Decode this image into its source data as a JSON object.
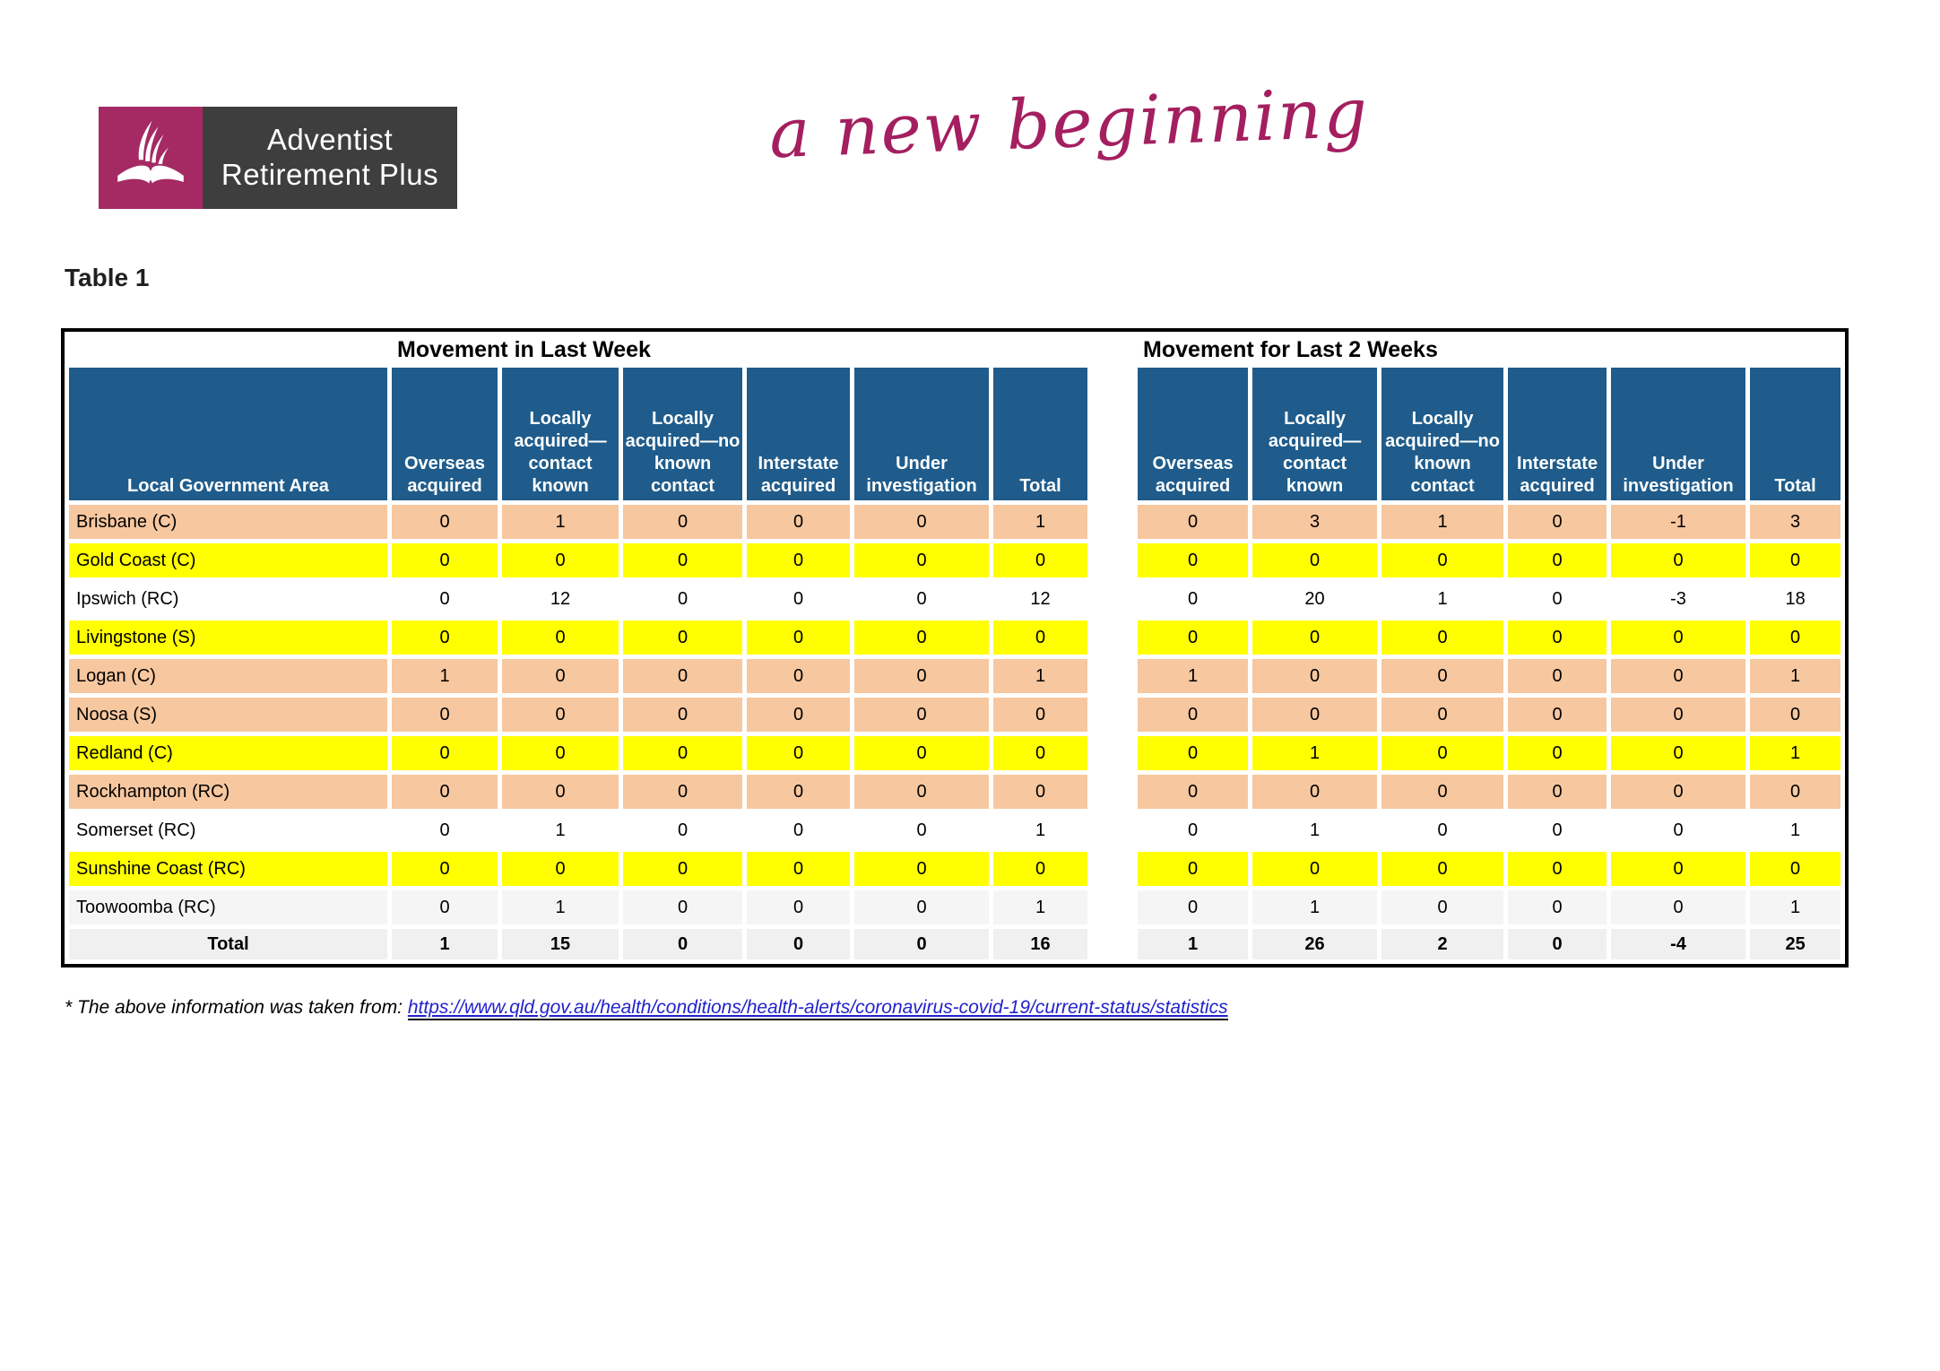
{
  "logo": {
    "line1": "Adventist",
    "line2": "Retirement Plus"
  },
  "tagline": "a new beginning",
  "table": {
    "caption": "Table 1",
    "group1_title": "Movement in Last Week",
    "group2_title": "Movement for Last 2 Weeks",
    "lga_header": "Local Government Area",
    "col_headers": [
      "Overseas acquired",
      "Locally acquired—contact known",
      "Locally acquired—no known contact",
      "Interstate acquired",
      "Under investigation",
      "Total"
    ],
    "rows": [
      {
        "area": "Brisbane (C)",
        "highlight": "peach",
        "week1": [
          0,
          1,
          0,
          0,
          0,
          1
        ],
        "week2": [
          0,
          3,
          1,
          0,
          -1,
          3
        ]
      },
      {
        "area": "Gold Coast (C)",
        "highlight": "yellow",
        "week1": [
          0,
          0,
          0,
          0,
          0,
          0
        ],
        "week2": [
          0,
          0,
          0,
          0,
          0,
          0
        ]
      },
      {
        "area": "Ipswich (RC)",
        "highlight": "white",
        "week1": [
          0,
          12,
          0,
          0,
          0,
          12
        ],
        "week2": [
          0,
          20,
          1,
          0,
          -3,
          18
        ]
      },
      {
        "area": "Livingstone (S)",
        "highlight": "yellow",
        "week1": [
          0,
          0,
          0,
          0,
          0,
          0
        ],
        "week2": [
          0,
          0,
          0,
          0,
          0,
          0
        ]
      },
      {
        "area": "Logan (C)",
        "highlight": "peach",
        "week1": [
          1,
          0,
          0,
          0,
          0,
          1
        ],
        "week2": [
          1,
          0,
          0,
          0,
          0,
          1
        ]
      },
      {
        "area": "Noosa (S)",
        "highlight": "peach",
        "week1": [
          0,
          0,
          0,
          0,
          0,
          0
        ],
        "week2": [
          0,
          0,
          0,
          0,
          0,
          0
        ]
      },
      {
        "area": "Redland (C)",
        "highlight": "yellow",
        "week1": [
          0,
          0,
          0,
          0,
          0,
          0
        ],
        "week2": [
          0,
          1,
          0,
          0,
          0,
          1
        ]
      },
      {
        "area": "Rockhampton (RC)",
        "highlight": "peach",
        "week1": [
          0,
          0,
          0,
          0,
          0,
          0
        ],
        "week2": [
          0,
          0,
          0,
          0,
          0,
          0
        ]
      },
      {
        "area": "Somerset (RC)",
        "highlight": "white",
        "week1": [
          0,
          1,
          0,
          0,
          0,
          1
        ],
        "week2": [
          0,
          1,
          0,
          0,
          0,
          1
        ]
      },
      {
        "area": "Sunshine Coast (RC)",
        "highlight": "yellow",
        "week1": [
          0,
          0,
          0,
          0,
          0,
          0
        ],
        "week2": [
          0,
          0,
          0,
          0,
          0,
          0
        ]
      },
      {
        "area": "Toowoomba (RC)",
        "highlight": "gray",
        "week1": [
          0,
          1,
          0,
          0,
          0,
          1
        ],
        "week2": [
          0,
          1,
          0,
          0,
          0,
          1
        ]
      }
    ],
    "total_row": {
      "label": "Total",
      "week1": [
        1,
        15,
        0,
        0,
        0,
        16
      ],
      "week2": [
        1,
        26,
        2,
        0,
        -4,
        25
      ]
    }
  },
  "footnote": {
    "prefix": "* The above information was taken from: ",
    "link_text": "https://www.qld.gov.au/health/conditions/health-alerts/coronavirus-covid-19/current-status/statistics"
  },
  "colors": {
    "header_blue": "#1F5C8B",
    "row_peach": "#F7C79F",
    "row_yellow": "#FFFF00",
    "row_gray": "#F5F5F5",
    "brand_magenta": "#A52A63",
    "brand_dark_gray": "#3E3E3E",
    "link_blue": "#2222CC"
  }
}
